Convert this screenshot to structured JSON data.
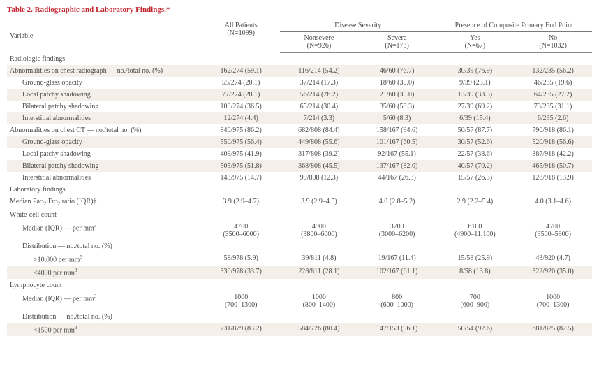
{
  "table": {
    "title": "Table 2. Radiographic and Laboratory Findings.*",
    "title_color": "#c1252d",
    "background_color": "#ffffff",
    "stripe_color": "#f4efe9",
    "gridline_color": "#888888",
    "text_color": "#4b4b4b",
    "font_family": "Times New Roman",
    "base_fontsize_pt": 10,
    "columns": {
      "variable": "Variable",
      "all_header": "All Patients",
      "all_n": "(N=1099)",
      "severity_header": "Disease Severity",
      "nonsevere": "Nonsevere",
      "nonsevere_n": "(N=926)",
      "severe": "Severe",
      "severe_n": "(N=173)",
      "endpoint_header": "Presence of Composite Primary End Point",
      "yes": "Yes",
      "yes_n": "(N=67)",
      "no": "No",
      "no_n": "(N=1032)"
    },
    "rows": [
      {
        "type": "section",
        "label": "Radiologic findings"
      },
      {
        "type": "data",
        "indent": 1,
        "label": "Abnormalities on chest radiograph — no./total no. (%)",
        "c": [
          "162/274 (59.1)",
          "116/214 (54.2)",
          "46/60 (76.7)",
          "30/39 (76.9)",
          "132/235 (56.2)"
        ],
        "stripe": true
      },
      {
        "type": "data",
        "indent": 2,
        "label": "Ground-glass opacity",
        "c": [
          "55/274 (20.1)",
          "37/214 (17.3)",
          "18/60 (30.0)",
          "9/39 (23.1)",
          "46/235 (19.6)"
        ],
        "stripe": false
      },
      {
        "type": "data",
        "indent": 2,
        "label": "Local patchy shadowing",
        "c": [
          "77/274 (28.1)",
          "56/214 (26.2)",
          "21/60 (35.0)",
          "13/39 (33.3)",
          "64/235 (27.2)"
        ],
        "stripe": true
      },
      {
        "type": "data",
        "indent": 2,
        "label": "Bilateral patchy shadowing",
        "c": [
          "100/274 (36.5)",
          "65/214 (30.4)",
          "35/60 (58.3)",
          "27/39 (69.2)",
          "73/235 (31.1)"
        ],
        "stripe": false
      },
      {
        "type": "data",
        "indent": 2,
        "label": "Interstitial abnormalities",
        "c": [
          "12/274 (4.4)",
          "7/214 (3.3)",
          "5/60 (8.3)",
          "6/39 (15.4)",
          "6/235 (2.6)"
        ],
        "stripe": true
      },
      {
        "type": "data",
        "indent": 1,
        "label": "Abnormalities on chest CT — no./total no. (%)",
        "c": [
          "840/975 (86.2)",
          "682/808 (84.4)",
          "158/167 (94.6)",
          "50/57 (87.7)",
          "790/918 (86.1)"
        ],
        "stripe": false
      },
      {
        "type": "data",
        "indent": 2,
        "label": "Ground-glass opacity",
        "c": [
          "550/975 (56.4)",
          "449/808 (55.6)",
          "101/167 (60.5)",
          "30/57 (52.6)",
          "520/918 (56.6)"
        ],
        "stripe": true
      },
      {
        "type": "data",
        "indent": 2,
        "label": "Local patchy shadowing",
        "c": [
          "409/975 (41.9)",
          "317/808 (39.2)",
          "92/167 (55.1)",
          "22/57 (38.6)",
          "387/918 (42.2)"
        ],
        "stripe": false
      },
      {
        "type": "data",
        "indent": 2,
        "label": "Bilateral patchy shadowing",
        "c": [
          "505/975 (51.8)",
          "368/808 (45.5)",
          "137/167 (82.0)",
          "40/57 (70.2)",
          "465/918 (50.7)"
        ],
        "stripe": true
      },
      {
        "type": "data",
        "indent": 2,
        "label": "Interstitial abnormalities",
        "c": [
          "143/975 (14.7)",
          "99/808 (12.3)",
          "44/167 (26.3)",
          "15/57 (26.3)",
          "128/918 (13.9)"
        ],
        "stripe": false
      },
      {
        "type": "section",
        "label": "Laboratory findings"
      },
      {
        "type": "data",
        "indent": 1,
        "label_html": "Median Pa<span style=\"font-variant: small-caps;\">o</span><sub>2</sub>:F<span style=\"font-variant: small-caps;\">io</span><sub>2</sub> ratio (IQR)†",
        "c": [
          "3.9 (2.9–4.7)",
          "3.9 (2.9–4.5)",
          "4.0 (2.8–5.2)",
          "2.9 (2.2–5.4)",
          "4.0 (3.1–4.6)"
        ],
        "stripe": false
      },
      {
        "type": "section",
        "label": "White-cell count"
      },
      {
        "type": "data",
        "indent": 2,
        "label_html": "Median (IQR) — per mm<sup>3</sup>",
        "c": [
          "4700\n(3500–6000)",
          "4900\n(3800–6000)",
          "3700\n(3000–6200)",
          "6100\n(4900–11,100)",
          "4700\n(3500–5900)"
        ],
        "stripe": false,
        "twoline": true
      },
      {
        "type": "data",
        "indent": 2,
        "label": "Distribution — no./total no. (%)",
        "c": [
          "",
          "",
          "",
          "",
          ""
        ],
        "stripe": false
      },
      {
        "type": "data",
        "indent": 3,
        "label_html": ">10,000 per mm<sup>3</sup>",
        "c": [
          "58/978 (5.9)",
          "39/811 (4.8)",
          "19/167 (11.4)",
          "15/58 (25.9)",
          "43/920 (4.7)"
        ],
        "stripe": false
      },
      {
        "type": "data",
        "indent": 3,
        "label_html": "<4000 per mm<sup>3</sup>",
        "c": [
          "330/978 (33.7)",
          "228/811 (28.1)",
          "102/167 (61.1)",
          "8/58 (13.8)",
          "322/920 (35.0)"
        ],
        "stripe": true
      },
      {
        "type": "section",
        "label": "Lymphocyte count"
      },
      {
        "type": "data",
        "indent": 2,
        "label_html": "Median (IQR) — per mm<sup>3</sup>",
        "c": [
          "1000\n(700–1300)",
          "1000\n(800–1400)",
          "800\n(600–1000)",
          "700\n(600–900)",
          "1000\n(700–1300)"
        ],
        "stripe": false,
        "twoline": true
      },
      {
        "type": "data",
        "indent": 2,
        "label": "Distribution — no./total no. (%)",
        "c": [
          "",
          "",
          "",
          "",
          ""
        ],
        "stripe": false
      },
      {
        "type": "data",
        "indent": 3,
        "label_html": "<1500 per mm<sup>3</sup>",
        "c": [
          "731/879 (83.2)",
          "584/726 (80.4)",
          "147/153 (96.1)",
          "50/54 (92.6)",
          "681/825 (82.5)"
        ],
        "stripe": true
      }
    ]
  }
}
